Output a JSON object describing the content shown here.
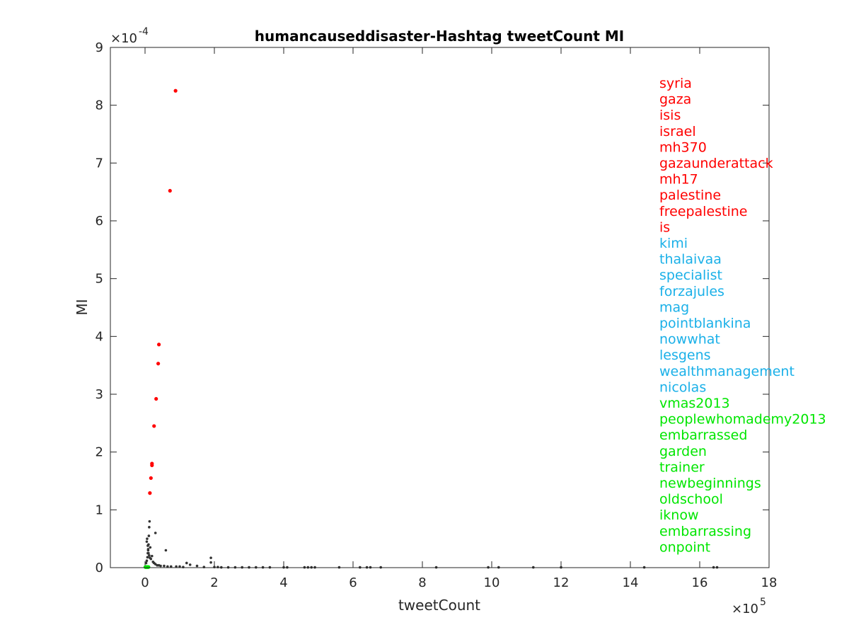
{
  "chart_data": {
    "type": "scatter",
    "title": "humancauseddisaster-Hashtag tweetCount MI",
    "xlabel": "tweetCount",
    "ylabel": "MI",
    "x_exponent_label": "×10",
    "x_exponent": "5",
    "y_exponent_label": "×10",
    "y_exponent": "-4",
    "xlim": [
      -100000,
      1800000
    ],
    "ylim": [
      0,
      0.0009
    ],
    "x_ticks": [
      0,
      200000,
      400000,
      600000,
      800000,
      1000000,
      1200000,
      1400000,
      1600000,
      1800000
    ],
    "x_tick_labels": [
      "0",
      "2",
      "4",
      "6",
      "8",
      "10",
      "12",
      "14",
      "16",
      "18"
    ],
    "y_ticks": [
      0,
      0.0001,
      0.0002,
      0.0003,
      0.0004,
      0.0005,
      0.0006,
      0.0007,
      0.0008,
      0.0009
    ],
    "y_tick_labels": [
      "0",
      "1",
      "2",
      "3",
      "4",
      "5",
      "6",
      "7",
      "8",
      "9"
    ],
    "grid": false,
    "series": [
      {
        "color": "#333333",
        "x": [
          3000,
          5000,
          7000,
          8000,
          9000,
          10000,
          11000,
          12000,
          13000,
          15000,
          17000,
          20000,
          23000,
          26000,
          30000,
          35000,
          40000,
          45000,
          55000,
          65000,
          75000,
          90000,
          100000,
          110000,
          130000,
          150000,
          170000,
          190000,
          200000,
          210000,
          220000,
          240000,
          260000,
          280000,
          300000,
          320000,
          340000,
          360000,
          400000,
          410000,
          460000,
          470000,
          480000,
          490000,
          560000,
          620000,
          640000,
          650000,
          680000,
          840000,
          990000,
          1020000,
          1120000,
          1200000,
          1440000,
          1640000,
          1650000,
          5000,
          6000,
          8000,
          9000,
          10000,
          12000,
          14000,
          30000,
          60000,
          120000,
          190000
        ],
        "y": [
          8e-06,
          1.2e-05,
          1.8e-05,
          2.5e-05,
          3e-05,
          4e-05,
          5.5e-05,
          7e-05,
          8e-05,
          3.5e-05,
          1.5e-05,
          2e-05,
          1e-05,
          8e-06,
          6e-06,
          4e-06,
          4e-06,
          3e-06,
          3e-06,
          2e-06,
          2e-06,
          2e-06,
          2e-06,
          1e-06,
          5e-06,
          3e-06,
          1e-06,
          9e-06,
          1e-06,
          1e-06,
          5e-07,
          5e-07,
          5e-07,
          5e-07,
          5e-07,
          5e-07,
          5e-07,
          5e-07,
          5e-07,
          5e-07,
          5e-07,
          5e-07,
          5e-07,
          5e-07,
          5e-07,
          5e-07,
          5e-07,
          5e-07,
          5e-07,
          5e-07,
          5e-07,
          5e-07,
          5e-07,
          5e-07,
          5e-07,
          5e-07,
          5e-07,
          4.5e-05,
          5e-05,
          3.8e-05,
          3.2e-05,
          2.5e-05,
          2.1e-05,
          1.7e-05,
          6e-05,
          3e-05,
          8e-06,
          1.7e-05
        ]
      },
      {
        "color": "#ff0000",
        "x": [
          88000,
          72000,
          40000,
          38000,
          32000,
          26000,
          20000,
          20000,
          17000,
          14000
        ],
        "y": [
          0.000825,
          0.000652,
          0.000386,
          0.000353,
          0.000292,
          0.000245,
          0.00018,
          0.000177,
          0.000155,
          0.000129
        ]
      },
      {
        "color": "#00e600",
        "x": [
          1000,
          2000,
          3000,
          4000,
          5000,
          6000,
          7000,
          8000,
          9000,
          10000
        ],
        "y": [
          1e-06,
          1e-06,
          1e-06,
          1e-06,
          1e-06,
          1e-06,
          1e-06,
          1e-06,
          1e-06,
          1e-06
        ]
      }
    ],
    "legend_position": "right",
    "annotations": [
      {
        "text": "syria",
        "color": "#ff0000"
      },
      {
        "text": "gaza",
        "color": "#ff0000"
      },
      {
        "text": "isis",
        "color": "#ff0000"
      },
      {
        "text": "israel",
        "color": "#ff0000"
      },
      {
        "text": "mh370",
        "color": "#ff0000"
      },
      {
        "text": "gazaunderattack",
        "color": "#ff0000"
      },
      {
        "text": "mh17",
        "color": "#ff0000"
      },
      {
        "text": "palestine",
        "color": "#ff0000"
      },
      {
        "text": "freepalestine",
        "color": "#ff0000"
      },
      {
        "text": "is",
        "color": "#ff0000"
      },
      {
        "text": "kimi",
        "color": "#1ab0e8"
      },
      {
        "text": "thalaivaa",
        "color": "#1ab0e8"
      },
      {
        "text": "specialist",
        "color": "#1ab0e8"
      },
      {
        "text": "forzajules",
        "color": "#1ab0e8"
      },
      {
        "text": "mag",
        "color": "#1ab0e8"
      },
      {
        "text": "pointblankina",
        "color": "#1ab0e8"
      },
      {
        "text": "nowwhat",
        "color": "#1ab0e8"
      },
      {
        "text": "lesgens",
        "color": "#1ab0e8"
      },
      {
        "text": "wealthmanagement",
        "color": "#1ab0e8"
      },
      {
        "text": "nicolas",
        "color": "#1ab0e8"
      },
      {
        "text": "vmas2013",
        "color": "#00e600"
      },
      {
        "text": "peoplewhomademy2013",
        "color": "#00e600"
      },
      {
        "text": "embarrassed",
        "color": "#00e600"
      },
      {
        "text": "garden",
        "color": "#00e600"
      },
      {
        "text": "trainer",
        "color": "#00e600"
      },
      {
        "text": "newbeginnings",
        "color": "#00e600"
      },
      {
        "text": "oldschool",
        "color": "#00e600"
      },
      {
        "text": "iknow",
        "color": "#00e600"
      },
      {
        "text": "embarrassing",
        "color": "#00e600"
      },
      {
        "text": "onpoint",
        "color": "#00e600"
      }
    ]
  }
}
